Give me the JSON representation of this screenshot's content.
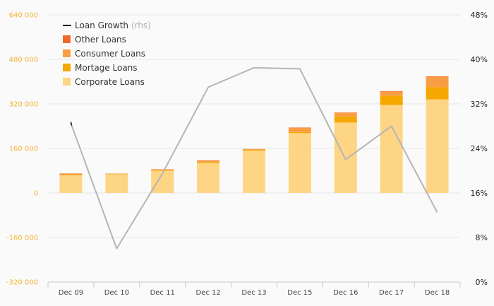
{
  "chart_data": {
    "type": "bar",
    "stacked": true,
    "categories": [
      "Dec 09",
      "Dec 10",
      "Dec 11",
      "Dec 12",
      "Dec 13",
      "Dec 15",
      "Dec 16",
      "Dec 17",
      "Dec 18"
    ],
    "series": [
      {
        "name": "Corporate Loans",
        "color": "#fdd585",
        "values": [
          63000,
          68000,
          80000,
          108000,
          152000,
          215000,
          253000,
          316000,
          336000
        ]
      },
      {
        "name": "Mortage Loans",
        "color": "#f5a800",
        "values": [
          2000,
          1000,
          2000,
          4000,
          3000,
          4000,
          22000,
          34000,
          44000
        ]
      },
      {
        "name": "Consumer Loans",
        "color": "#f99d45",
        "values": [
          4000,
          1000,
          2000,
          4000,
          3000,
          15000,
          13000,
          14000,
          38000
        ]
      },
      {
        "name": "Other Loans",
        "color": "#f06a2a",
        "values": [
          1000,
          0,
          1000,
          1000,
          0,
          1000,
          1000,
          2000,
          1000
        ]
      }
    ],
    "line": {
      "name": "Loan Growth",
      "suffix": "(rhs)",
      "color": "#b5b5b5",
      "values": [
        28.5,
        6.0,
        19.5,
        35.0,
        38.5,
        38.3,
        22.0,
        28.0,
        12.5
      ]
    },
    "y_left": {
      "min": -320000,
      "max": 640000,
      "ticks": [
        640000,
        480000,
        320000,
        160000,
        0,
        -160000,
        -320000
      ],
      "tick_labels": [
        "640 000",
        "480 000",
        "320 000",
        "160 000",
        "0",
        "-160 000",
        "-320 000"
      ]
    },
    "y_right": {
      "min": 0,
      "max": 48,
      "ticks": [
        48,
        40,
        32,
        24,
        16,
        8,
        0
      ],
      "tick_labels": [
        "48%",
        "40%",
        "32%",
        "24%",
        "16%",
        "8%",
        "0%"
      ]
    },
    "legend": {
      "position": "top-left",
      "order": [
        "Loan Growth",
        "Other Loans",
        "Consumer Loans",
        "Mortage Loans",
        "Corporate Loans"
      ]
    },
    "grid": true
  }
}
